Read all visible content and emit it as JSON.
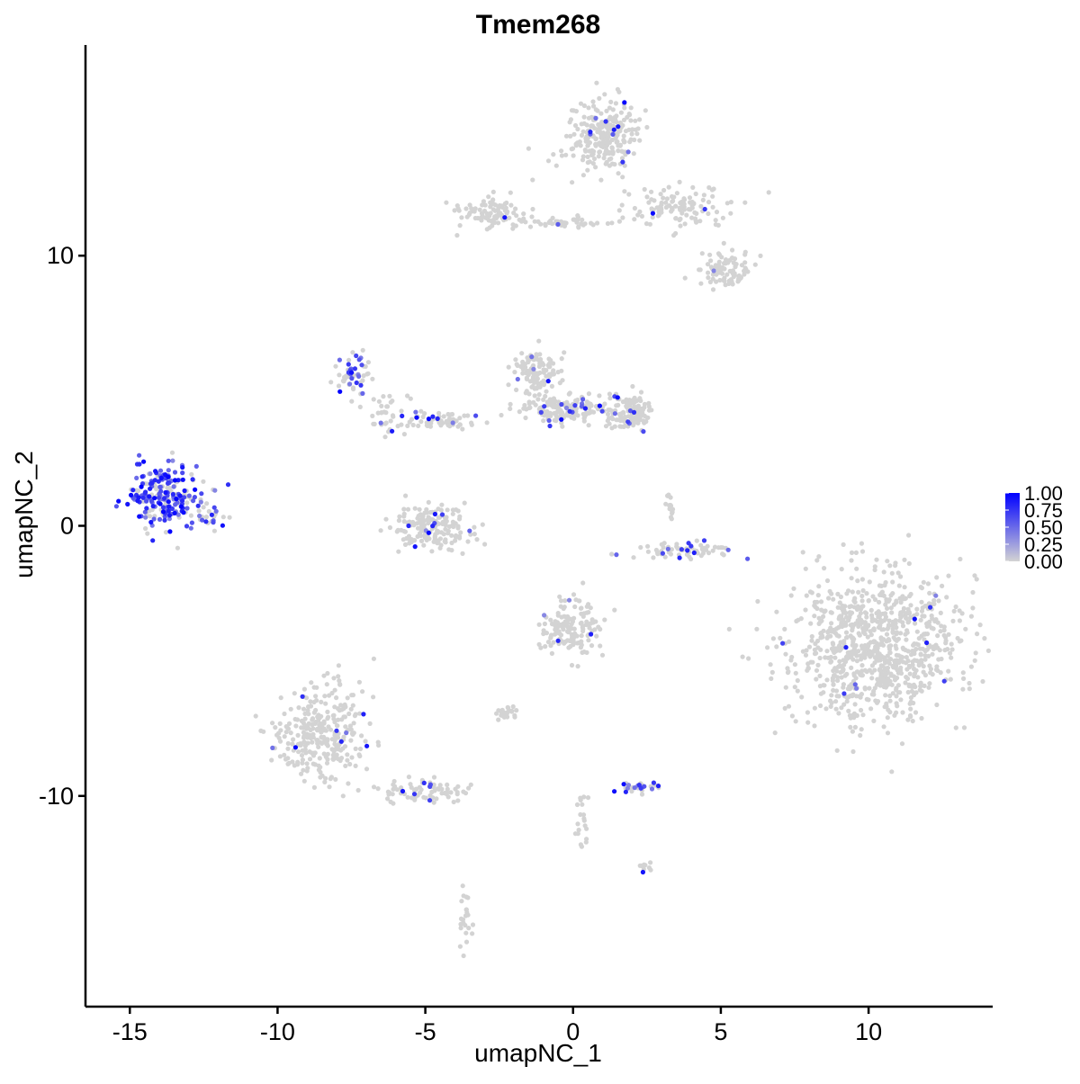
{
  "chart_data": {
    "type": "scatter",
    "title": "Tmem268",
    "xlabel": "umapNC_1",
    "ylabel": "umapNC_2",
    "xlim": [
      -16.5,
      14.2
    ],
    "ylim": [
      -17.8,
      17.8
    ],
    "x_ticks": [
      -15,
      -10,
      -5,
      0,
      5,
      10
    ],
    "y_ticks": [
      -10,
      0,
      10
    ],
    "x_tick_labels": [
      "-15",
      "-10",
      "-5",
      "0",
      "5",
      "10"
    ],
    "y_tick_labels": [
      "-10",
      "0",
      "10"
    ],
    "grid": false,
    "legend": {
      "position": "right",
      "title": "",
      "labels": [
        "1.00",
        "0.75",
        "0.50",
        "0.25",
        "0.00"
      ],
      "values": [
        1.0,
        0.75,
        0.5,
        0.25,
        0.0
      ]
    },
    "colors": {
      "low": "#d3d3d3",
      "high": "#0000ff"
    },
    "clusters": [
      {
        "cx": -13.8,
        "cy": 1.1,
        "rx": 1.2,
        "ry": 1.0,
        "n": 240,
        "expr": 0.65
      },
      {
        "cx": -12.2,
        "cy": 0.4,
        "rx": 0.4,
        "ry": 0.3,
        "n": 20,
        "expr": 0.3
      },
      {
        "cx": -7.5,
        "cy": 5.6,
        "rx": 0.55,
        "ry": 0.8,
        "n": 55,
        "expr": 0.4
      },
      {
        "cx": -6.3,
        "cy": 4.2,
        "rx": 0.8,
        "ry": 0.7,
        "n": 40,
        "expr": 0.05
      },
      {
        "cx": -4.8,
        "cy": 0.0,
        "rx": 1.3,
        "ry": 0.7,
        "n": 180,
        "expr": 0.05
      },
      {
        "cx": -4.4,
        "cy": 3.9,
        "rx": 1.0,
        "ry": 0.3,
        "n": 60,
        "expr": 0.1
      },
      {
        "cx": -1.3,
        "cy": 5.6,
        "rx": 0.7,
        "ry": 0.8,
        "n": 110,
        "expr": 0.1
      },
      {
        "cx": -0.3,
        "cy": 4.3,
        "rx": 1.5,
        "ry": 0.5,
        "n": 170,
        "expr": 0.08
      },
      {
        "cx": 2.0,
        "cy": 4.2,
        "rx": 0.7,
        "ry": 0.6,
        "n": 110,
        "expr": 0.08
      },
      {
        "cx": 1.0,
        "cy": 14.5,
        "rx": 1.1,
        "ry": 1.1,
        "n": 260,
        "expr": 0.06
      },
      {
        "cx": 3.5,
        "cy": 11.8,
        "rx": 1.8,
        "ry": 0.7,
        "n": 120,
        "expr": 0.03
      },
      {
        "cx": 5.2,
        "cy": 9.5,
        "rx": 0.8,
        "ry": 0.6,
        "n": 90,
        "expr": 0.02
      },
      {
        "cx": -2.8,
        "cy": 11.6,
        "rx": 1.0,
        "ry": 0.5,
        "n": 90,
        "expr": 0.02
      },
      {
        "cx": -0.5,
        "cy": 11.2,
        "rx": 1.2,
        "ry": 0.2,
        "n": 40,
        "expr": 0.05
      },
      {
        "cx": 3.8,
        "cy": -0.9,
        "rx": 1.4,
        "ry": 0.3,
        "n": 70,
        "expr": 0.1
      },
      {
        "cx": 3.3,
        "cy": 0.8,
        "rx": 0.2,
        "ry": 0.6,
        "n": 15,
        "expr": 0.0
      },
      {
        "cx": 0.0,
        "cy": -3.8,
        "rx": 0.9,
        "ry": 1.0,
        "n": 150,
        "expr": 0.03
      },
      {
        "cx": -8.6,
        "cy": -7.7,
        "rx": 1.4,
        "ry": 1.6,
        "n": 300,
        "expr": 0.03
      },
      {
        "cx": -5.0,
        "cy": -9.8,
        "rx": 1.5,
        "ry": 0.4,
        "n": 80,
        "expr": 0.03
      },
      {
        "cx": -2.3,
        "cy": -6.9,
        "rx": 0.4,
        "ry": 0.2,
        "n": 25,
        "expr": 0.0
      },
      {
        "cx": 10.2,
        "cy": -4.5,
        "rx": 2.6,
        "ry": 2.5,
        "n": 900,
        "expr": 0.02
      },
      {
        "cx": 2.2,
        "cy": -9.7,
        "rx": 0.7,
        "ry": 0.2,
        "n": 30,
        "expr": 0.55
      },
      {
        "cx": 2.5,
        "cy": -12.6,
        "rx": 0.3,
        "ry": 0.2,
        "n": 10,
        "expr": 0.05
      },
      {
        "cx": -3.6,
        "cy": -14.5,
        "rx": 0.3,
        "ry": 0.8,
        "n": 25,
        "expr": 0.02
      },
      {
        "cx": 0.3,
        "cy": -10.8,
        "rx": 0.2,
        "ry": 1.0,
        "n": 20,
        "expr": 0.05
      }
    ]
  }
}
